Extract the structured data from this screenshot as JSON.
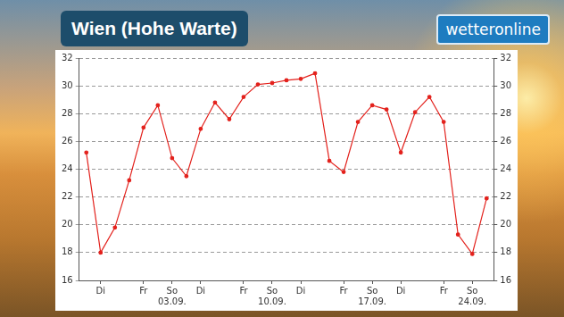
{
  "logo": "wetteronline",
  "chart_data": {
    "type": "line",
    "title": "Wien (Hohe Warte)",
    "categories": [
      null,
      "Di",
      null,
      null,
      "Fr",
      null,
      [
        "So",
        "03.09."
      ],
      null,
      "Di",
      null,
      null,
      "Fr",
      null,
      [
        "So",
        "10.09."
      ],
      null,
      "Di",
      null,
      null,
      "Fr",
      null,
      [
        "So",
        "17.09."
      ],
      null,
      "Di",
      null,
      null,
      "Fr",
      null,
      [
        "So",
        "24.09."
      ],
      null
    ],
    "values": [
      25.2,
      18.0,
      19.8,
      23.2,
      27.0,
      28.6,
      24.8,
      23.5,
      26.9,
      28.8,
      27.6,
      29.2,
      30.1,
      30.2,
      30.4,
      30.5,
      30.9,
      24.6,
      23.8,
      27.4,
      28.6,
      28.3,
      25.2,
      28.1,
      29.2,
      27.4,
      19.3,
      17.9,
      21.9
    ],
    "color": "#e3211c",
    "marker": "circle",
    "line_style": "solid",
    "ylim": [
      16,
      32
    ],
    "yticks": [
      16,
      18,
      20,
      22,
      24,
      26,
      28,
      30,
      32
    ],
    "y2lim": [
      16,
      32
    ],
    "y2ticks": [
      16,
      18,
      20,
      22,
      24,
      26,
      28,
      30,
      32
    ],
    "grid": true
  }
}
